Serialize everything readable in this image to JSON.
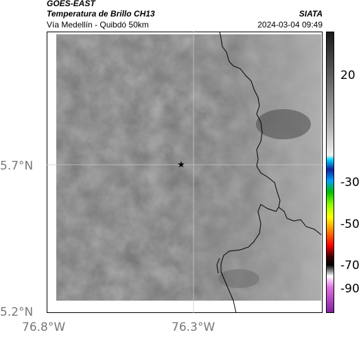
{
  "header": {
    "satellite": "GOES-EAST",
    "product": "Temperatura de Brillo CH13",
    "region": "Vía Medellín - Quibdó 50km",
    "source": "SIATA",
    "timestamp": "2024-03-04 09:49"
  },
  "map": {
    "lat_ticks": [
      "5.7°N",
      "5.2°N"
    ],
    "lon_ticks": [
      "76.8°W",
      "76.3°W"
    ],
    "marker_icon": "star-icon",
    "colors": {
      "background_gray": "#7a7a7a",
      "border": "#000000",
      "grid": "#c8c8c8"
    }
  },
  "colorbar": {
    "labels": [
      "20",
      "-30",
      "-50",
      "-70",
      "-90"
    ],
    "colors": [
      "#1a1a1a",
      "#8a8a8a",
      "#e0e0e0",
      "#00d8ff",
      "#1020a0",
      "#00c000",
      "#ffff00",
      "#ff3000",
      "#000000",
      "#c040c0"
    ]
  }
}
